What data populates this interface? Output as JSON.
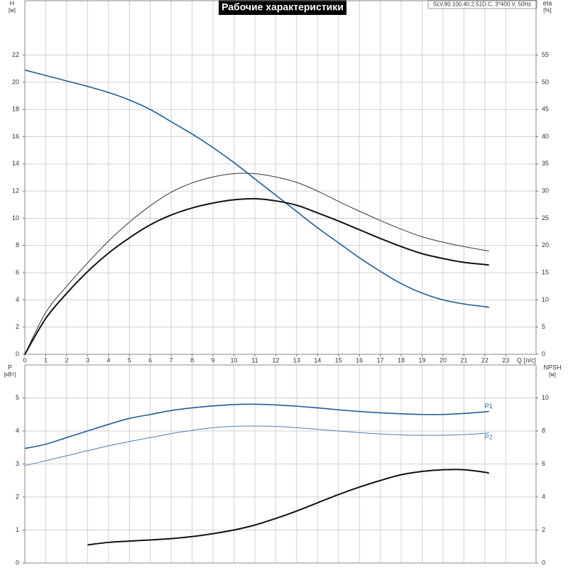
{
  "chart_data": [
    {
      "type": "line",
      "title": "Рабочие характеристики",
      "subtitle": "SLV.80.100.40.2.51D.C, 3*400 V, 50Hz",
      "x_label": "Q [л/с]",
      "y_label": "H",
      "y_unit": "[м]",
      "y2_label": "eta",
      "y2_unit": "[%]",
      "x": [
        0,
        1,
        2,
        3,
        4,
        5,
        6,
        7,
        8,
        9,
        10,
        11,
        12,
        13,
        14,
        15,
        16,
        17,
        18,
        19,
        20,
        21,
        22,
        22.2
      ],
      "xlim": [
        0,
        24.45
      ],
      "xticks": [
        0,
        1,
        2,
        3,
        4,
        5,
        6,
        7,
        8,
        9,
        10,
        11,
        12,
        13,
        14,
        15,
        16,
        17,
        18,
        19,
        20,
        21,
        22,
        23
      ],
      "ylim": [
        0,
        26
      ],
      "yticks": [
        0,
        2,
        4,
        6,
        8,
        10,
        12,
        14,
        16,
        18,
        20,
        22
      ],
      "y2lim": [
        0,
        65
      ],
      "y2ticks": [
        0,
        5,
        10,
        15,
        20,
        25,
        30,
        35,
        40,
        45,
        50,
        55
      ],
      "grid": true,
      "series": [
        {
          "color": "#1f5c99",
          "linewidth": 1.6,
          "axis": "y",
          "values": [
            20.9,
            20.5,
            20.1,
            19.7,
            19.25,
            18.7,
            18.0,
            17.1,
            16.2,
            15.2,
            14.1,
            12.9,
            11.7,
            10.5,
            9.3,
            8.2,
            7.1,
            6.1,
            5.2,
            4.5,
            4.0,
            3.7,
            3.5,
            3.45
          ]
        },
        {
          "color": "#333333",
          "linewidth": 1,
          "axis": "y2",
          "values": [
            0,
            7.7,
            12.5,
            16.8,
            20.8,
            24.3,
            27.3,
            29.8,
            31.5,
            32.6,
            33.2,
            33.2,
            32.6,
            31.6,
            30.0,
            28.1,
            26.3,
            24.6,
            23.0,
            21.6,
            20.6,
            19.8,
            19.1,
            19.0
          ]
        },
        {
          "color": "#111111",
          "linewidth": 2,
          "axis": "y2",
          "values": [
            0,
            6.6,
            11.2,
            15.2,
            18.6,
            21.4,
            23.8,
            25.6,
            26.9,
            27.8,
            28.4,
            28.6,
            28.2,
            27.4,
            26.0,
            24.5,
            22.9,
            21.3,
            19.8,
            18.5,
            17.6,
            16.9,
            16.5,
            16.4
          ]
        }
      ]
    },
    {
      "type": "line",
      "y_label": "P",
      "y_unit": "[кВт]",
      "y2_label": "NPSH",
      "y2_unit": "[м]",
      "x": [
        0,
        1,
        2,
        3,
        4,
        5,
        6,
        7,
        8,
        9,
        10,
        11,
        12,
        13,
        14,
        15,
        16,
        17,
        18,
        19,
        20,
        21,
        22,
        22.2
      ],
      "xlim": [
        0,
        24.45
      ],
      "ylim": [
        0,
        6
      ],
      "yticks": [
        0,
        1,
        2,
        3,
        4,
        5
      ],
      "y2lim": [
        0,
        12
      ],
      "y2ticks": [
        0,
        2,
        4,
        6,
        8,
        10
      ],
      "grid": true,
      "series": [
        {
          "name": "P1",
          "color": "#1f5c99",
          "linewidth": 1.6,
          "axis": "y",
          "values": [
            3.47,
            3.6,
            3.8,
            4.0,
            4.2,
            4.38,
            4.5,
            4.62,
            4.7,
            4.76,
            4.8,
            4.81,
            4.79,
            4.75,
            4.7,
            4.64,
            4.59,
            4.55,
            4.52,
            4.5,
            4.5,
            4.53,
            4.58,
            4.59
          ]
        },
        {
          "name": "P2",
          "color": "#4a7fb5",
          "linewidth": 1,
          "axis": "y",
          "values": [
            2.95,
            3.1,
            3.25,
            3.4,
            3.55,
            3.68,
            3.8,
            3.92,
            4.02,
            4.1,
            4.14,
            4.15,
            4.14,
            4.1,
            4.05,
            4.0,
            3.95,
            3.91,
            3.88,
            3.87,
            3.87,
            3.89,
            3.93,
            3.95
          ]
        },
        {
          "color": "#111111",
          "linewidth": 2,
          "axis": "y2",
          "values": [
            null,
            null,
            null,
            1.1,
            1.25,
            1.33,
            1.4,
            1.48,
            1.6,
            1.78,
            2.0,
            2.3,
            2.7,
            3.15,
            3.65,
            4.15,
            4.6,
            5.0,
            5.35,
            5.55,
            5.65,
            5.65,
            5.5,
            5.43
          ]
        }
      ]
    }
  ]
}
